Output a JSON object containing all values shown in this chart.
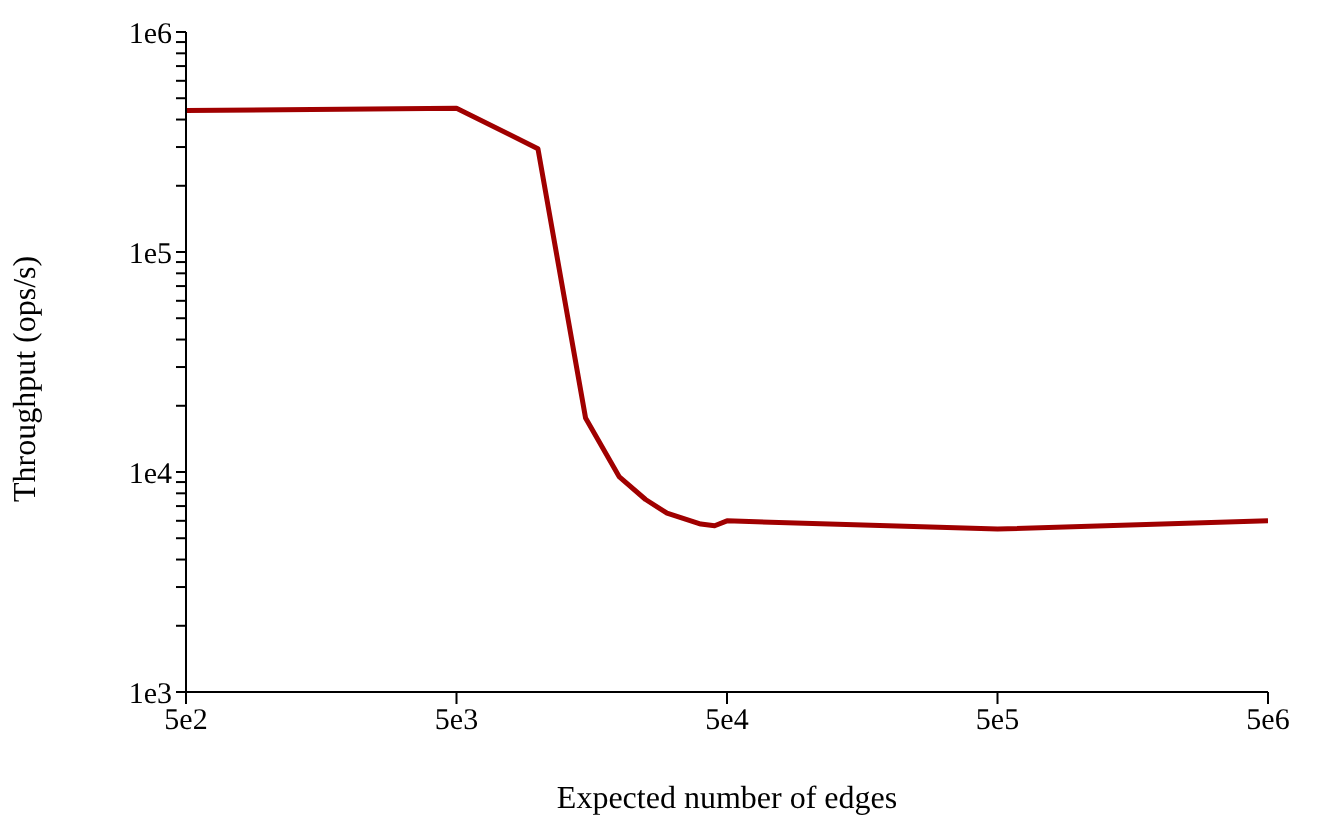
{
  "chart_data": {
    "type": "line",
    "xlabel": "Expected number of edges",
    "ylabel": "Throughput (ops/s)",
    "log": "xy",
    "x": [
      500,
      5000,
      10000,
      15000,
      20000,
      25000,
      30000,
      40000,
      45000,
      50000,
      500000,
      5000000
    ],
    "series": [
      {
        "color": "#a00000",
        "values": [
          440000,
          450000,
          295000,
          17600,
          9500,
          7500,
          6500,
          5800,
          5700,
          6000,
          5500,
          6000
        ]
      }
    ],
    "xlim": [
      500,
      5000000
    ],
    "xticks": [
      {
        "value": 500,
        "label": "5e2"
      },
      {
        "value": 5000,
        "label": "5e3"
      },
      {
        "value": 50000,
        "label": "5e4"
      },
      {
        "value": 500000,
        "label": "5e5"
      },
      {
        "value": 5000000,
        "label": "5e6"
      }
    ],
    "ylim": [
      1000,
      1000000
    ],
    "yticks": [
      {
        "value": 1000,
        "label": "1e3"
      },
      {
        "value": 2000,
        "label": null
      },
      {
        "value": 3000,
        "label": null
      },
      {
        "value": 4000,
        "label": null
      },
      {
        "value": 5000,
        "label": null
      },
      {
        "value": 6000,
        "label": null
      },
      {
        "value": 7000,
        "label": null
      },
      {
        "value": 8000,
        "label": null
      },
      {
        "value": 9000,
        "label": null
      },
      {
        "value": 10000,
        "label": "1e4"
      },
      {
        "value": 20000,
        "label": null
      },
      {
        "value": 30000,
        "label": null
      },
      {
        "value": 40000,
        "label": null
      },
      {
        "value": 50000,
        "label": null
      },
      {
        "value": 60000,
        "label": null
      },
      {
        "value": 70000,
        "label": null
      },
      {
        "value": 80000,
        "label": null
      },
      {
        "value": 90000,
        "label": null
      },
      {
        "value": 100000,
        "label": "1e5"
      },
      {
        "value": 200000,
        "label": null
      },
      {
        "value": 300000,
        "label": null
      },
      {
        "value": 400000,
        "label": null
      },
      {
        "value": 500000,
        "label": null
      },
      {
        "value": 600000,
        "label": null
      },
      {
        "value": 700000,
        "label": null
      },
      {
        "value": 800000,
        "label": null
      },
      {
        "value": 900000,
        "label": null
      },
      {
        "value": 1000000,
        "label": "1e6"
      }
    ],
    "grid": false,
    "legend": false,
    "marker": "none",
    "line_style": "solid"
  }
}
